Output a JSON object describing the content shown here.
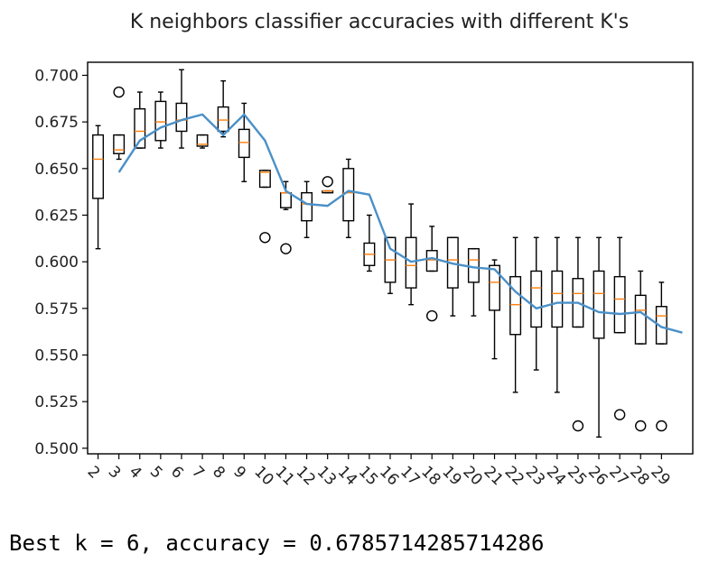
{
  "chart_data": {
    "type": "boxplot+line",
    "title": "K neighbors classifier accuracies with different K's",
    "xlabel": "",
    "ylabel": "",
    "ylim": [
      0.497,
      0.707
    ],
    "yticks": [
      0.5,
      0.525,
      0.55,
      0.575,
      0.6,
      0.625,
      0.65,
      0.675,
      0.7
    ],
    "ytick_labels": [
      "0.500",
      "0.525",
      "0.550",
      "0.575",
      "0.600",
      "0.625",
      "0.650",
      "0.675",
      "0.700"
    ],
    "xlim": [
      0.5,
      29.5
    ],
    "categories": [
      "2",
      "3",
      "4",
      "5",
      "6",
      "7",
      "8",
      "9",
      "10",
      "11",
      "12",
      "13",
      "14",
      "15",
      "16",
      "17",
      "18",
      "19",
      "20",
      "21",
      "22",
      "23",
      "24",
      "25",
      "26",
      "27",
      "28",
      "29"
    ],
    "boxes": [
      {
        "k": 2,
        "whislo": 0.607,
        "q1": 0.634,
        "med": 0.655,
        "q3": 0.668,
        "whishi": 0.673,
        "fliers": []
      },
      {
        "k": 3,
        "whislo": 0.655,
        "q1": 0.658,
        "med": 0.66,
        "q3": 0.668,
        "whishi": 0.668,
        "fliers": [
          0.691
        ]
      },
      {
        "k": 4,
        "whislo": 0.661,
        "q1": 0.661,
        "med": 0.67,
        "q3": 0.682,
        "whishi": 0.691,
        "fliers": []
      },
      {
        "k": 5,
        "whislo": 0.661,
        "q1": 0.665,
        "med": 0.675,
        "q3": 0.686,
        "whishi": 0.691,
        "fliers": []
      },
      {
        "k": 6,
        "whislo": 0.661,
        "q1": 0.67,
        "med": 0.676,
        "q3": 0.685,
        "whishi": 0.703,
        "fliers": []
      },
      {
        "k": 7,
        "whislo": 0.661,
        "q1": 0.662,
        "med": 0.663,
        "q3": 0.668,
        "whishi": 0.668,
        "fliers": []
      },
      {
        "k": 8,
        "whislo": 0.667,
        "q1": 0.67,
        "med": 0.676,
        "q3": 0.683,
        "whishi": 0.697,
        "fliers": []
      },
      {
        "k": 9,
        "whislo": 0.643,
        "q1": 0.656,
        "med": 0.664,
        "q3": 0.671,
        "whishi": 0.685,
        "fliers": []
      },
      {
        "k": 10,
        "whislo": 0.64,
        "q1": 0.64,
        "med": 0.648,
        "q3": 0.649,
        "whishi": 0.649,
        "fliers": [
          0.613
        ]
      },
      {
        "k": 11,
        "whislo": 0.628,
        "q1": 0.629,
        "med": 0.637,
        "q3": 0.637,
        "whishi": 0.643,
        "fliers": [
          0.607
        ]
      },
      {
        "k": 12,
        "whislo": 0.613,
        "q1": 0.622,
        "med": 0.631,
        "q3": 0.637,
        "whishi": 0.643,
        "fliers": []
      },
      {
        "k": 13,
        "whislo": 0.637,
        "q1": 0.637,
        "med": 0.638,
        "q3": 0.638,
        "whishi": 0.638,
        "fliers": [
          0.643
        ]
      },
      {
        "k": 14,
        "whislo": 0.613,
        "q1": 0.622,
        "med": 0.637,
        "q3": 0.65,
        "whishi": 0.655,
        "fliers": []
      },
      {
        "k": 15,
        "whislo": 0.595,
        "q1": 0.598,
        "med": 0.604,
        "q3": 0.61,
        "whishi": 0.625,
        "fliers": []
      },
      {
        "k": 16,
        "whislo": 0.583,
        "q1": 0.589,
        "med": 0.601,
        "q3": 0.613,
        "whishi": 0.613,
        "fliers": []
      },
      {
        "k": 17,
        "whislo": 0.577,
        "q1": 0.586,
        "med": 0.598,
        "q3": 0.613,
        "whishi": 0.631,
        "fliers": []
      },
      {
        "k": 18,
        "whislo": 0.595,
        "q1": 0.595,
        "med": 0.601,
        "q3": 0.606,
        "whishi": 0.619,
        "fliers": [
          0.571
        ]
      },
      {
        "k": 19,
        "whislo": 0.571,
        "q1": 0.586,
        "med": 0.601,
        "q3": 0.613,
        "whishi": 0.613,
        "fliers": []
      },
      {
        "k": 20,
        "whislo": 0.571,
        "q1": 0.589,
        "med": 0.601,
        "q3": 0.607,
        "whishi": 0.607,
        "fliers": []
      },
      {
        "k": 21,
        "whislo": 0.548,
        "q1": 0.574,
        "med": 0.589,
        "q3": 0.598,
        "whishi": 0.601,
        "fliers": []
      },
      {
        "k": 22,
        "whislo": 0.53,
        "q1": 0.561,
        "med": 0.577,
        "q3": 0.592,
        "whishi": 0.613,
        "fliers": []
      },
      {
        "k": 23,
        "whislo": 0.542,
        "q1": 0.565,
        "med": 0.586,
        "q3": 0.595,
        "whishi": 0.613,
        "fliers": []
      },
      {
        "k": 24,
        "whislo": 0.53,
        "q1": 0.565,
        "med": 0.583,
        "q3": 0.595,
        "whishi": 0.613,
        "fliers": []
      },
      {
        "k": 25,
        "whislo": 0.565,
        "q1": 0.565,
        "med": 0.583,
        "q3": 0.591,
        "whishi": 0.613,
        "fliers": [
          0.512
        ]
      },
      {
        "k": 26,
        "whislo": 0.506,
        "q1": 0.559,
        "med": 0.583,
        "q3": 0.595,
        "whishi": 0.613,
        "fliers": []
      },
      {
        "k": 27,
        "whislo": 0.562,
        "q1": 0.562,
        "med": 0.58,
        "q3": 0.592,
        "whishi": 0.613,
        "fliers": [
          0.518
        ]
      },
      {
        "k": 28,
        "whislo": 0.556,
        "q1": 0.556,
        "med": 0.574,
        "q3": 0.582,
        "whishi": 0.595,
        "fliers": [
          0.512
        ]
      },
      {
        "k": 29,
        "whislo": 0.556,
        "q1": 0.556,
        "med": 0.571,
        "q3": 0.576,
        "whishi": 0.589,
        "fliers": [
          0.512
        ]
      }
    ],
    "mean_line": {
      "x": [
        3,
        4,
        5,
        6,
        7,
        8,
        9,
        10,
        11,
        12,
        13,
        14,
        15,
        16,
        17,
        18,
        19,
        20,
        21,
        22,
        23,
        24,
        25,
        26,
        27,
        28,
        29,
        30
      ],
      "y": [
        0.648,
        0.665,
        0.672,
        0.676,
        0.679,
        0.668,
        0.679,
        0.665,
        0.638,
        0.631,
        0.63,
        0.638,
        0.636,
        0.607,
        0.6,
        0.602,
        0.599,
        0.597,
        0.596,
        0.584,
        0.575,
        0.578,
        0.578,
        0.573,
        0.572,
        0.573,
        0.565,
        0.562
      ]
    },
    "grid": false,
    "legend": "none"
  },
  "output_text": "Best k = 6, accuracy = 0.6785714285714286"
}
